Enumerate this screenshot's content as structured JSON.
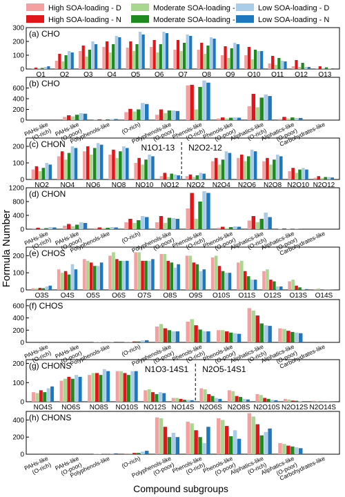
{
  "legend": [
    {
      "label": "High SOA-loading - D",
      "color": "#f4a0a0"
    },
    {
      "label": "Moderate SOA-loading - D",
      "color": "#a8d890"
    },
    {
      "label": "Low SOA-loading - D",
      "color": "#a9cde8"
    },
    {
      "label": "High SOA-loading - N",
      "color": "#e0161b"
    },
    {
      "label": "Moderate SOA-loading - N",
      "color": "#1f8a1f"
    },
    {
      "label": "Low SOA-loading - N",
      "color": "#1e78c0"
    }
  ],
  "ylabel": "Formula Number",
  "xlabel": "Compound subgroups",
  "chart_data": [
    {
      "type": "bar",
      "title": "(a) CHO",
      "ylim": [
        0,
        300
      ],
      "yticks": [
        0,
        100,
        200,
        300
      ],
      "categories": [
        "O1",
        "O2",
        "O3",
        "O4",
        "O5",
        "O6",
        "O7",
        "O8",
        "O9",
        "O10",
        "O11",
        "O12",
        "O13"
      ],
      "series": [
        {
          "name": "High SOA-loading - D",
          "values": [
            5,
            60,
            130,
            160,
            155,
            160,
            140,
            140,
            100,
            100,
            40,
            20,
            5
          ]
        },
        {
          "name": "High SOA-loading - N",
          "values": [
            10,
            110,
            170,
            200,
            200,
            210,
            210,
            190,
            165,
            160,
            95,
            65,
            20
          ]
        },
        {
          "name": "Moderate SOA-loading - D",
          "values": [
            5,
            55,
            90,
            120,
            130,
            120,
            130,
            110,
            80,
            70,
            30,
            15,
            5
          ]
        },
        {
          "name": "Moderate SOA-loading - N",
          "values": [
            8,
            100,
            140,
            180,
            180,
            180,
            190,
            170,
            150,
            140,
            80,
            45,
            12
          ]
        },
        {
          "name": "Low SOA-loading - D",
          "values": [
            15,
            130,
            200,
            240,
            270,
            270,
            250,
            230,
            190,
            130,
            60,
            15,
            5
          ]
        },
        {
          "name": "Low SOA-loading - N",
          "values": [
            20,
            120,
            180,
            230,
            250,
            260,
            240,
            220,
            180,
            130,
            55,
            15,
            5
          ]
        }
      ]
    },
    {
      "type": "bar",
      "title": "(b) CHO",
      "ylim": [
        0,
        800
      ],
      "yticks": [
        0,
        200,
        400,
        600
      ],
      "categories": [
        "PAHs-like\n(O-rich)",
        "PAHs-like\n(O-poor)",
        "Polyphenols-like",
        "(O-rich)",
        "Polyphenols-like\n(O-poor)",
        "Phenols-like\n(O-rich)",
        "Phenols-like\n(O-poor)",
        "Aliphatics-like\n(O-rich)",
        "Aliphatics-like\n(O-poor)",
        "Carbohydrates-like"
      ],
      "series": [
        {
          "name": "High SOA-loading - D",
          "values": [
            0,
            60,
            10,
            150,
            100,
            650,
            30,
            260,
            20,
            0
          ]
        },
        {
          "name": "High SOA-loading - N",
          "values": [
            0,
            90,
            15,
            210,
            200,
            660,
            50,
            490,
            60,
            0
          ]
        },
        {
          "name": "Moderate SOA-loading - D",
          "values": [
            0,
            70,
            10,
            160,
            130,
            200,
            30,
            240,
            30,
            0
          ]
        },
        {
          "name": "Moderate SOA-loading - N",
          "values": [
            0,
            100,
            15,
            200,
            180,
            620,
            45,
            420,
            50,
            0
          ]
        },
        {
          "name": "Low SOA-loading - D",
          "values": [
            0,
            130,
            20,
            320,
            180,
            740,
            50,
            480,
            40,
            0
          ]
        },
        {
          "name": "Low SOA-loading - N",
          "values": [
            0,
            120,
            20,
            300,
            170,
            700,
            45,
            450,
            40,
            0
          ]
        }
      ]
    },
    {
      "type": "bar",
      "title": "(c) CHON",
      "ylim": [
        0,
        250
      ],
      "yticks": [
        0,
        100,
        200
      ],
      "categories": [
        "NO2",
        "NO4",
        "NO6",
        "NO8",
        "NO10",
        "NO12",
        "N2O2",
        "N2O4",
        "N2O6",
        "N2O8",
        "N2O10",
        "N2O12"
      ],
      "series": [
        {
          "name": "High SOA-loading - D",
          "values": [
            60,
            140,
            170,
            150,
            100,
            20,
            20,
            110,
            130,
            110,
            50,
            10
          ]
        },
        {
          "name": "High SOA-loading - N",
          "values": [
            80,
            170,
            200,
            180,
            130,
            40,
            30,
            130,
            150,
            130,
            70,
            20
          ]
        },
        {
          "name": "Moderate SOA-loading - D",
          "values": [
            50,
            120,
            150,
            130,
            90,
            15,
            15,
            90,
            110,
            90,
            40,
            8
          ]
        },
        {
          "name": "Moderate SOA-loading - N",
          "values": [
            70,
            160,
            190,
            170,
            120,
            35,
            25,
            120,
            140,
            120,
            60,
            15
          ]
        },
        {
          "name": "Low SOA-loading - D",
          "values": [
            100,
            200,
            220,
            200,
            150,
            30,
            40,
            170,
            180,
            150,
            70,
            15
          ]
        },
        {
          "name": "Low SOA-loading - N",
          "values": [
            90,
            190,
            210,
            190,
            140,
            25,
            35,
            160,
            170,
            140,
            60,
            12
          ]
        }
      ]
    },
    {
      "type": "bar",
      "title": "(d) CHON",
      "ylim": [
        0,
        1200
      ],
      "yticks": [
        0,
        400,
        800,
        1200
      ],
      "categories": [
        "PAHs-like\n(O-rich)",
        "PAHs-like\n(O-poor)",
        "Polyphenols-like",
        "(O-rich)",
        "Polyphenols-like\n(O-poor)",
        "Phenols-like\n(O-rich)",
        "Phenols-like\n(O-poor)",
        "Aliphatics-like\n(O-rich)",
        "Aliphatics-like\n(O-poor)",
        "Carbohydrates-like"
      ],
      "series": [
        {
          "name": "High SOA-loading - D",
          "values": [
            20,
            100,
            30,
            200,
            200,
            600,
            40,
            250,
            10,
            0
          ]
        },
        {
          "name": "High SOA-loading - N",
          "values": [
            40,
            150,
            50,
            300,
            380,
            1050,
            70,
            380,
            20,
            0
          ]
        },
        {
          "name": "Moderate SOA-loading - D",
          "values": [
            20,
            80,
            30,
            180,
            180,
            300,
            30,
            200,
            10,
            0
          ]
        },
        {
          "name": "Moderate SOA-loading - N",
          "values": [
            30,
            130,
            40,
            260,
            330,
            800,
            60,
            300,
            15,
            0
          ]
        },
        {
          "name": "Low SOA-loading - D",
          "values": [
            60,
            200,
            60,
            380,
            320,
            1100,
            80,
            480,
            20,
            0
          ]
        },
        {
          "name": "Low SOA-loading - N",
          "values": [
            50,
            180,
            50,
            350,
            300,
            1050,
            70,
            350,
            15,
            0
          ]
        }
      ]
    },
    {
      "type": "bar",
      "title": "(e) CHOS",
      "ylim": [
        0,
        250
      ],
      "yticks": [
        0,
        100,
        200
      ],
      "categories": [
        "O3S",
        "O4S",
        "O5S",
        "O6S",
        "O7S",
        "O8S",
        "O9S",
        "O10S",
        "O11S",
        "O12S",
        "O13S",
        "O14S"
      ],
      "series": [
        {
          "name": "High SOA-loading - D",
          "values": [
            10,
            120,
            180,
            200,
            220,
            210,
            200,
            190,
            160,
            110,
            50,
            5
          ]
        },
        {
          "name": "Moderate SOA-loading - D",
          "values": [
            8,
            100,
            170,
            220,
            220,
            210,
            200,
            200,
            170,
            120,
            60,
            8
          ]
        },
        {
          "name": "High SOA-loading - N",
          "values": [
            12,
            110,
            160,
            180,
            170,
            170,
            160,
            140,
            110,
            60,
            25,
            3
          ]
        },
        {
          "name": "Moderate SOA-loading - N",
          "values": [
            10,
            90,
            140,
            170,
            170,
            160,
            150,
            110,
            80,
            50,
            15,
            2
          ]
        },
        {
          "name": "Low SOA-loading - D",
          "values": [
            20,
            150,
            140,
            170,
            170,
            130,
            110,
            100,
            60,
            20,
            5,
            1
          ]
        },
        {
          "name": "Low SOA-loading - N",
          "values": [
            25,
            120,
            160,
            170,
            180,
            150,
            120,
            100,
            60,
            20,
            5,
            1
          ]
        }
      ]
    },
    {
      "type": "bar",
      "title": "(f) CHOS",
      "ylim": [
        0,
        700
      ],
      "yticks": [
        0,
        200,
        400,
        600
      ],
      "categories": [
        "PAHs-like\n(O-rich)",
        "PAHs-like\n(O-poor)",
        "Polyphenols-like",
        "(O-rich)",
        "Polyphenols-like\n(O-poor)",
        "Phenols-like\n(O-rich)",
        "Phenols-like\n(O-poor)",
        "Aliphatics-like\n(O-rich)",
        "Aliphatics-like\n(O-poor)",
        "Carbohydrates-like"
      ],
      "series": [
        {
          "name": "High SOA-loading - D",
          "values": [
            0,
            0,
            5,
            10,
            260,
            340,
            200,
            560,
            230,
            0
          ]
        },
        {
          "name": "Moderate SOA-loading - D",
          "values": [
            0,
            0,
            5,
            10,
            300,
            380,
            200,
            520,
            220,
            0
          ]
        },
        {
          "name": "High SOA-loading - N",
          "values": [
            0,
            0,
            5,
            15,
            230,
            280,
            180,
            440,
            190,
            0
          ]
        },
        {
          "name": "Moderate SOA-loading - N",
          "values": [
            0,
            0,
            5,
            15,
            200,
            210,
            160,
            310,
            170,
            0
          ]
        },
        {
          "name": "Low SOA-loading - D",
          "values": [
            0,
            0,
            10,
            30,
            180,
            180,
            150,
            280,
            160,
            0
          ]
        },
        {
          "name": "Low SOA-loading - N",
          "values": [
            0,
            0,
            10,
            35,
            180,
            180,
            140,
            270,
            150,
            0
          ]
        }
      ]
    },
    {
      "type": "bar",
      "title": "(g) CHONS",
      "ylim": [
        0,
        220
      ],
      "yticks": [
        0,
        100,
        200
      ],
      "categories": [
        "NO4S",
        "NO6S",
        "NO8S",
        "NO10S",
        "NO12S",
        "NO14S",
        "N2O6S",
        "N2O8S",
        "N2O10S",
        "N2O12S",
        "N2O14S"
      ],
      "series": [
        {
          "name": "High SOA-loading - D",
          "values": [
            50,
            110,
            140,
            160,
            60,
            20,
            70,
            60,
            40,
            15,
            5
          ]
        },
        {
          "name": "Moderate SOA-loading - D",
          "values": [
            45,
            120,
            150,
            160,
            65,
            20,
            65,
            55,
            35,
            12,
            4
          ]
        },
        {
          "name": "High SOA-loading - N",
          "values": [
            60,
            130,
            150,
            150,
            50,
            15,
            40,
            30,
            20,
            6,
            2
          ]
        },
        {
          "name": "Moderate SOA-loading - N",
          "values": [
            50,
            120,
            140,
            140,
            40,
            10,
            30,
            25,
            15,
            5,
            2
          ]
        },
        {
          "name": "Low SOA-loading - D",
          "values": [
            70,
            140,
            170,
            160,
            50,
            10,
            20,
            15,
            10,
            3,
            1
          ]
        },
        {
          "name": "Low SOA-loading - N",
          "values": [
            80,
            130,
            160,
            160,
            45,
            8,
            15,
            12,
            8,
            3,
            1
          ]
        }
      ]
    },
    {
      "type": "bar",
      "title": "(h) CHONS",
      "ylim": [
        0,
        500
      ],
      "yticks": [
        0,
        200,
        400
      ],
      "categories": [
        "PAHs-like\n(O-rich)",
        "PAHs-like\n(O-poor)",
        "Polyphenols-like",
        "(O-rich)",
        "Polyphenols-like\n(O-poor)",
        "Phenols-like\n(O-rich)",
        "Phenols-like\n(O-poor)",
        "Aliphatics-like\n(O-rich)",
        "Aliphatics-like\n(O-poor)",
        "Carbohydrates-like"
      ],
      "series": [
        {
          "name": "High SOA-loading - D",
          "values": [
            0,
            0,
            5,
            10,
            430,
            380,
            420,
            480,
            130,
            0
          ]
        },
        {
          "name": "Moderate SOA-loading - D",
          "values": [
            0,
            0,
            5,
            10,
            420,
            360,
            400,
            440,
            120,
            0
          ]
        },
        {
          "name": "High SOA-loading - N",
          "values": [
            0,
            0,
            5,
            15,
            320,
            280,
            330,
            350,
            100,
            0
          ]
        },
        {
          "name": "Moderate SOA-loading - N",
          "values": [
            0,
            0,
            5,
            15,
            200,
            200,
            210,
            220,
            90,
            0
          ]
        },
        {
          "name": "Low SOA-loading - D",
          "values": [
            0,
            0,
            10,
            30,
            250,
            130,
            280,
            260,
            80,
            0
          ]
        },
        {
          "name": "Low SOA-loading - N",
          "values": [
            0,
            0,
            10,
            40,
            200,
            320,
            180,
            300,
            70,
            0
          ]
        }
      ]
    }
  ],
  "annotations": {
    "c_left": "N1O1-13",
    "c_right": "N2O2-12",
    "g_left": "N1O3-14S1",
    "g_right": "N2O5-14S1"
  }
}
